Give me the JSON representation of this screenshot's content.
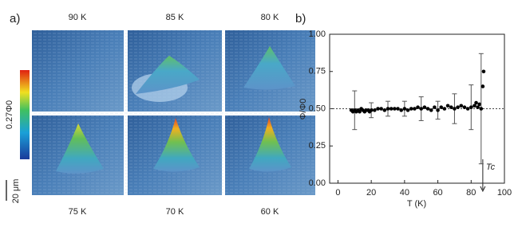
{
  "figure_a": {
    "label": "a)",
    "temperatures": [
      "90 K",
      "85 K",
      "80 K",
      "75 K",
      "70 K",
      "60 K"
    ],
    "colorbar_label": "0.27Φ0",
    "scale_bar": "20 μm"
  },
  "chart_data": {
    "type": "scatter",
    "label": "b)",
    "xlabel": "T (K)",
    "ylabel": "Φ/Φ0",
    "series": [
      {
        "color": "#000000",
        "x": [
          8,
          9,
          10,
          11,
          12,
          13,
          14,
          15,
          16,
          17,
          18,
          19,
          20,
          22,
          24,
          26,
          28,
          30,
          32,
          34,
          36,
          38,
          40,
          42,
          44,
          46,
          48,
          50,
          52,
          54,
          56,
          58,
          60,
          62,
          64,
          66,
          68,
          70,
          72,
          74,
          76,
          78,
          80,
          82,
          83,
          84,
          85,
          86,
          87,
          87.5
        ],
        "values": [
          0.49,
          0.48,
          0.49,
          0.48,
          0.49,
          0.48,
          0.5,
          0.49,
          0.48,
          0.49,
          0.49,
          0.48,
          0.49,
          0.49,
          0.5,
          0.5,
          0.49,
          0.5,
          0.5,
          0.5,
          0.5,
          0.49,
          0.5,
          0.49,
          0.5,
          0.5,
          0.51,
          0.5,
          0.51,
          0.5,
          0.49,
          0.51,
          0.49,
          0.51,
          0.5,
          0.52,
          0.51,
          0.5,
          0.51,
          0.52,
          0.51,
          0.5,
          0.51,
          0.52,
          0.54,
          0.51,
          0.53,
          0.5,
          0.65,
          0.75
        ],
        "errors": [
          null,
          null,
          0.13,
          null,
          null,
          null,
          null,
          null,
          null,
          null,
          null,
          null,
          0.05,
          null,
          null,
          null,
          null,
          0.05,
          null,
          null,
          null,
          null,
          0.05,
          null,
          null,
          null,
          null,
          0.08,
          null,
          null,
          null,
          null,
          0.06,
          null,
          null,
          null,
          null,
          0.1,
          null,
          null,
          null,
          null,
          0.15,
          null,
          null,
          null,
          null,
          0.37,
          null,
          null
        ]
      }
    ],
    "hline": 0.5,
    "annotation": {
      "text": "Tc",
      "x": 87
    },
    "xlim": [
      -5,
      100
    ],
    "xticks": [
      0,
      20,
      40,
      60,
      80,
      100
    ],
    "ylim": [
      0,
      1
    ],
    "yticks": [
      {
        "value": 0,
        "label": "0.00"
      },
      {
        "value": 0.25,
        "label": "0.25"
      },
      {
        "value": 0.5,
        "label": "0.50"
      },
      {
        "value": 0.75,
        "label": "0.75"
      },
      {
        "value": 1,
        "label": "1.00"
      }
    ]
  }
}
